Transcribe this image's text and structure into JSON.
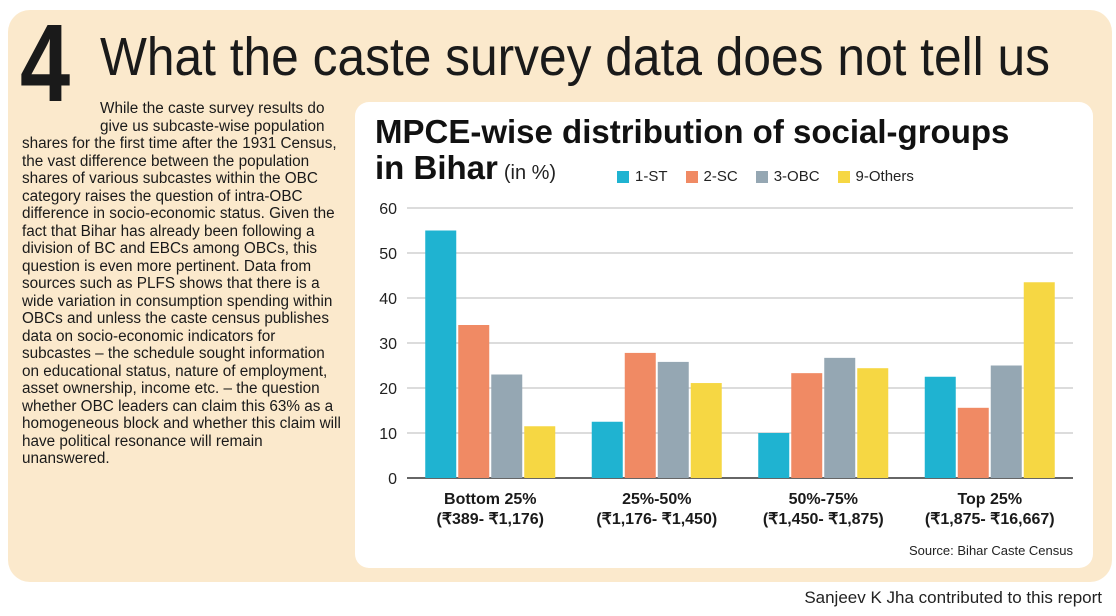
{
  "headline": {
    "number": "4",
    "title": "What the caste survey data does not tell us"
  },
  "body": "While the caste survey results do give us subcaste-wise population shares for the first time after the 1931 Census, the vast difference between the population shares of various subcastes within the OBC category raises the question of intra-OBC difference in socio-economic status. Given the fact that Bihar has already been following a division of BC and EBCs among OBCs, this question is even more pertinent. Data from sources such as PLFS shows that there is a wide variation in consumption spending within OBCs and unless the caste census publishes data on socio-economic indicators for subcastes – the schedule sought information on educational status, nature of employment, asset ownership, income etc. – the question whether OBC leaders can claim this 63% as a homogeneous block and whether this claim will have political resonance will remain unanswered.",
  "chart_data": {
    "type": "bar",
    "title_line1": "MPCE-wise distribution of social-groups",
    "title_line2": "in Bihar",
    "unit": "(in %)",
    "categories": [
      [
        "Bottom 25%",
        "(₹389- ₹1,176)"
      ],
      [
        "25%-50%",
        "(₹1,176- ₹1,450)"
      ],
      [
        "50%-75%",
        "(₹1,450- ₹1,875)"
      ],
      [
        "Top 25%",
        "(₹1,875- ₹16,667)"
      ]
    ],
    "series": [
      {
        "name": "1-ST",
        "color": "#1fb3d1",
        "values": [
          55,
          12.5,
          10,
          22.5
        ]
      },
      {
        "name": "2-SC",
        "color": "#f08a64",
        "values": [
          34,
          27.8,
          23.3,
          15.6
        ]
      },
      {
        "name": "3-OBC",
        "color": "#95a7b3",
        "values": [
          23,
          25.8,
          26.7,
          25
        ]
      },
      {
        "name": "9-Others",
        "color": "#f6d743",
        "values": [
          11.5,
          21.1,
          24.4,
          43.5
        ]
      }
    ],
    "yticks": [
      0,
      10,
      20,
      30,
      40,
      50,
      60
    ],
    "ylim": [
      0,
      60
    ],
    "grid": true,
    "legend": "top",
    "source": "Source: Bihar Caste Census"
  },
  "credit": "Sanjeev K Jha contributed to this report"
}
